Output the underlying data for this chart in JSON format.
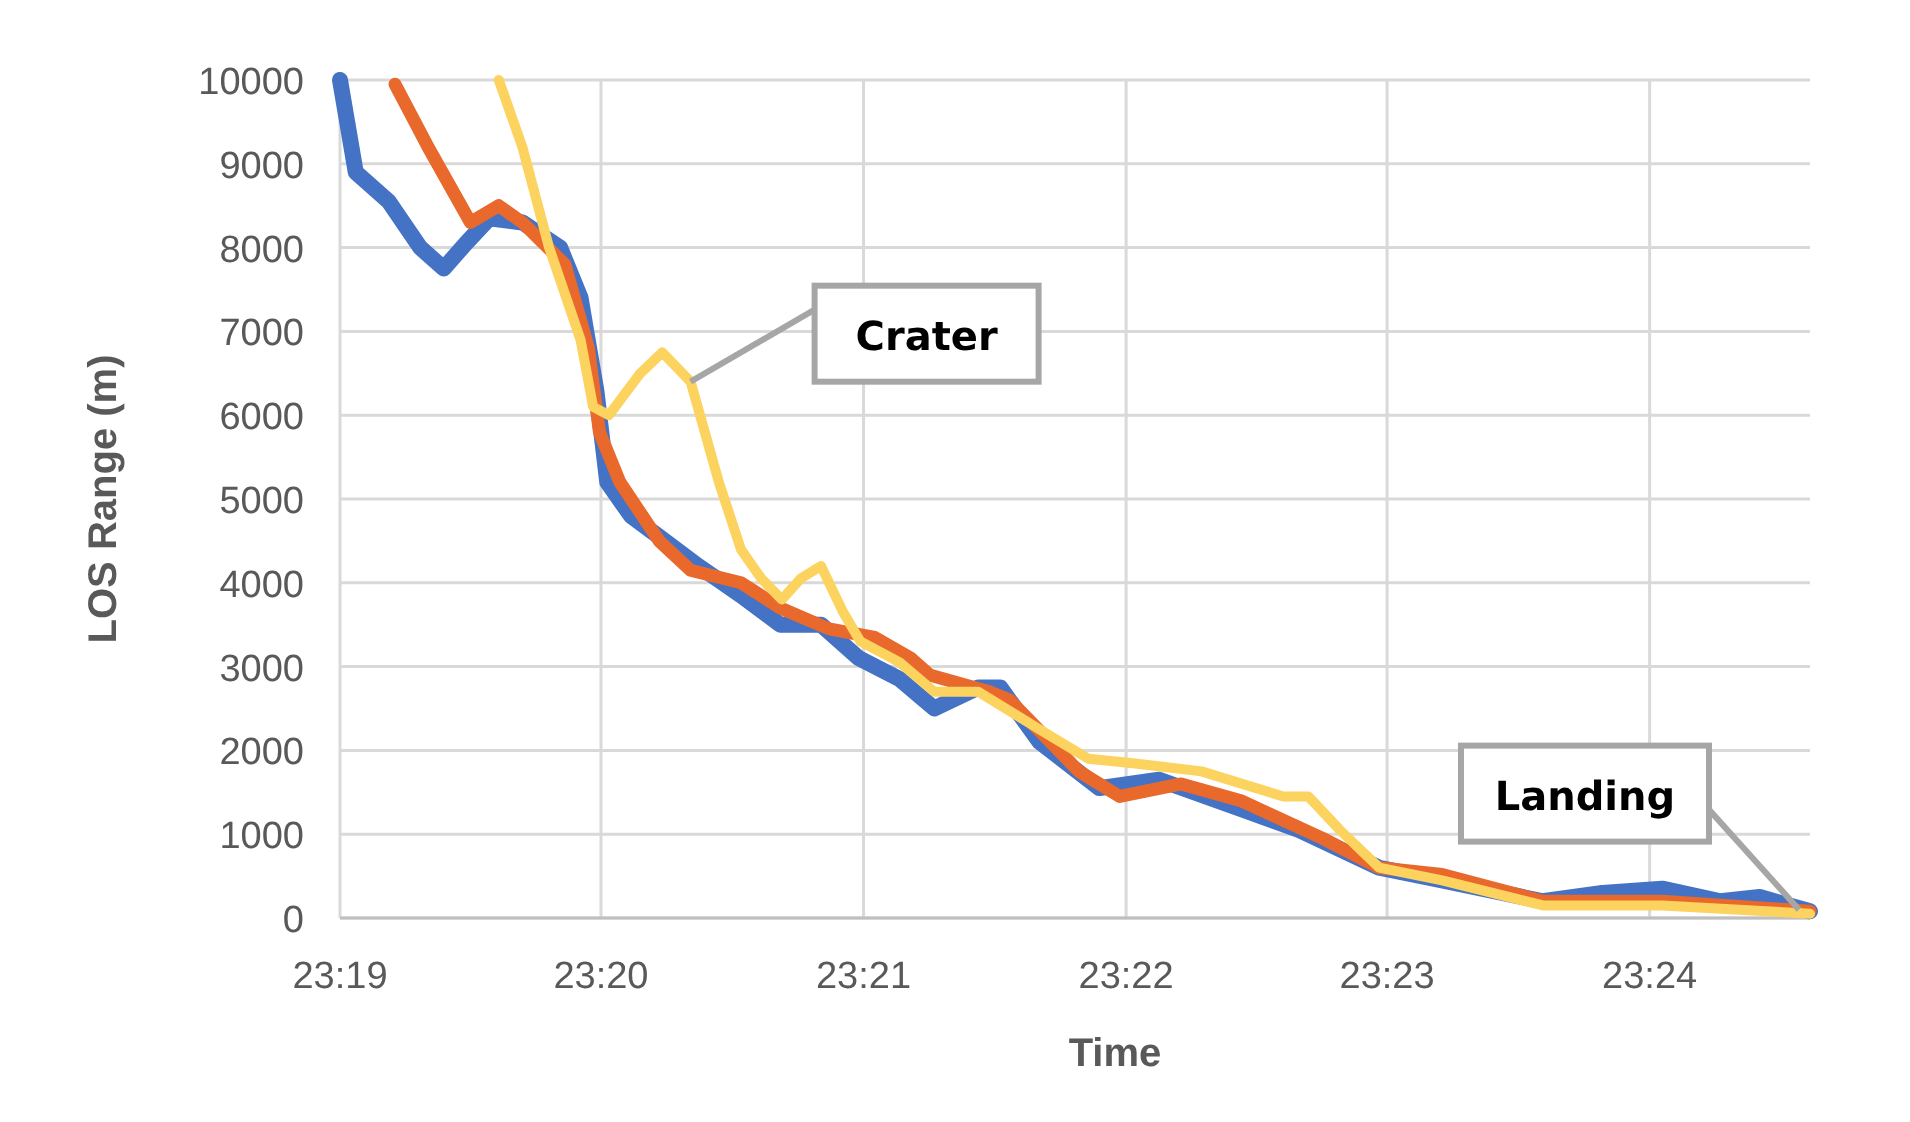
{
  "chart_data": {
    "type": "line",
    "xlabel": "Time",
    "ylabel": "LOS Range (m)",
    "xlim": [
      23.3167,
      23.4102
    ],
    "xticks": [
      {
        "value": 23.3167,
        "label": "23:19"
      },
      {
        "value": 23.3333,
        "label": "23:20"
      },
      {
        "value": 23.35,
        "label": "23:21"
      },
      {
        "value": 23.3667,
        "label": "23:22"
      },
      {
        "value": 23.3833,
        "label": "23:23"
      },
      {
        "value": 23.4,
        "label": "23:24"
      }
    ],
    "ylim": [
      0,
      10000
    ],
    "yticks": [
      0,
      1000,
      2000,
      3000,
      4000,
      5000,
      6000,
      7000,
      8000,
      9000,
      10000
    ],
    "grid": true,
    "annotations": [
      {
        "text": "Crater",
        "x": 23.339,
        "y": 6400
      },
      {
        "text": "Landing",
        "x": 23.4095,
        "y": 100
      }
    ],
    "series": [
      {
        "color": "#4472c4",
        "x": [
          23.3167,
          23.3177,
          23.3198,
          23.3218,
          23.3233,
          23.3247,
          23.3262,
          23.3283,
          23.3307,
          23.332,
          23.333,
          23.3337,
          23.3352,
          23.337,
          23.3395,
          23.3422,
          23.3447,
          23.3473,
          23.3497,
          23.3523,
          23.3545,
          23.3573,
          23.3587,
          23.3612,
          23.365,
          23.3688,
          23.374,
          23.3777,
          23.3828,
          23.3868,
          23.3932,
          23.397,
          23.4008,
          23.4045,
          23.407,
          23.4102
        ],
        "values": [
          10000,
          8900,
          8550,
          8000,
          7750,
          8050,
          8350,
          8300,
          8000,
          7400,
          6300,
          5200,
          4800,
          4550,
          4200,
          3850,
          3500,
          3500,
          3100,
          2850,
          2500,
          2750,
          2750,
          2100,
          1550,
          1650,
          1300,
          1050,
          600,
          450,
          200,
          300,
          350,
          200,
          250,
          80
        ]
      },
      {
        "color": "#e9692c",
        "x": [
          23.3202,
          23.3223,
          23.325,
          23.3268,
          23.3283,
          23.331,
          23.3325,
          23.3332,
          23.3345,
          23.337,
          23.339,
          23.3422,
          23.3447,
          23.3478,
          23.3507,
          23.353,
          23.3542,
          23.358,
          23.3593,
          23.3637,
          23.3663,
          23.3702,
          23.374,
          23.3792,
          23.3828,
          23.3868,
          23.3932,
          23.4008,
          23.4102
        ],
        "values": [
          9950,
          9200,
          8300,
          8500,
          8300,
          7800,
          6800,
          5800,
          5200,
          4500,
          4150,
          4000,
          3700,
          3450,
          3350,
          3100,
          2900,
          2700,
          2600,
          1750,
          1450,
          1600,
          1400,
          950,
          600,
          520,
          200,
          200,
          80
        ]
      },
      {
        "color": "#fcd35f",
        "x": [
          23.3268,
          23.3283,
          23.33,
          23.332,
          23.3328,
          23.3338,
          23.3358,
          23.3372,
          23.339,
          23.3408,
          23.3422,
          23.3435,
          23.3448,
          23.346,
          23.3473,
          23.3487,
          23.3498,
          23.3523,
          23.3545,
          23.3573,
          23.3612,
          23.3643,
          23.367,
          23.3715,
          23.3767,
          23.3783,
          23.3803,
          23.3828,
          23.3868,
          23.3932,
          23.4008,
          23.4102
        ],
        "values": [
          10000,
          9200,
          8000,
          6900,
          6100,
          6000,
          6500,
          6750,
          6400,
          5200,
          4400,
          4050,
          3800,
          4050,
          4200,
          3650,
          3300,
          3050,
          2700,
          2700,
          2250,
          1900,
          1850,
          1750,
          1450,
          1450,
          1050,
          600,
          450,
          150,
          150,
          50
        ]
      }
    ]
  }
}
